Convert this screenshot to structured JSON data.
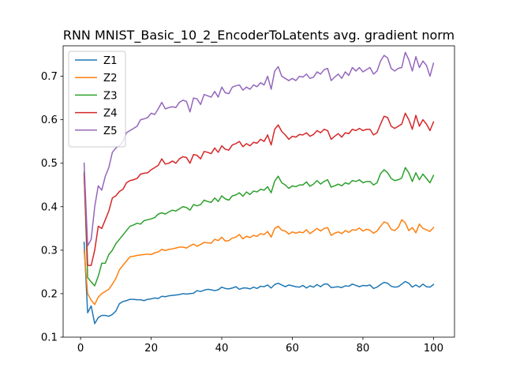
{
  "chart_data": {
    "type": "line",
    "title": "RNN MNIST_Basic_10_2_EncoderToLatents avg. gradient norm",
    "xlabel": "",
    "ylabel": "",
    "xlim": [
      -4.95,
      105.95
    ],
    "ylim": [
      0.1,
      0.77
    ],
    "xticks": [
      0,
      20,
      40,
      60,
      80,
      100
    ],
    "yticks": [
      0.1,
      0.2,
      0.3,
      0.4,
      0.5,
      0.6,
      0.7
    ],
    "ytick_labels": [
      "0.1",
      "0.2",
      "0.3",
      "0.4",
      "0.5",
      "0.6",
      "0.7"
    ],
    "grid": false,
    "legend_position": "top-left",
    "x": [
      1,
      2,
      3,
      4,
      5,
      6,
      7,
      8,
      9,
      10,
      11,
      12,
      13,
      14,
      15,
      16,
      17,
      18,
      19,
      20,
      21,
      22,
      23,
      24,
      25,
      26,
      27,
      28,
      29,
      30,
      31,
      32,
      33,
      34,
      35,
      36,
      37,
      38,
      39,
      40,
      41,
      42,
      43,
      44,
      45,
      46,
      47,
      48,
      49,
      50,
      51,
      52,
      53,
      54,
      55,
      56,
      57,
      58,
      59,
      60,
      61,
      62,
      63,
      64,
      65,
      66,
      67,
      68,
      69,
      70,
      71,
      72,
      73,
      74,
      75,
      76,
      77,
      78,
      79,
      80,
      81,
      82,
      83,
      84,
      85,
      86,
      87,
      88,
      89,
      90,
      91,
      92,
      93,
      94,
      95,
      96,
      97,
      98,
      99,
      100
    ],
    "series": [
      {
        "name": "Z1",
        "color": "#1f77b4",
        "values": [
          0.318,
          0.156,
          0.172,
          0.131,
          0.145,
          0.15,
          0.15,
          0.148,
          0.152,
          0.16,
          0.177,
          0.182,
          0.184,
          0.187,
          0.187,
          0.186,
          0.186,
          0.184,
          0.187,
          0.188,
          0.19,
          0.189,
          0.194,
          0.193,
          0.195,
          0.196,
          0.197,
          0.198,
          0.2,
          0.199,
          0.2,
          0.201,
          0.207,
          0.205,
          0.208,
          0.21,
          0.209,
          0.207,
          0.209,
          0.215,
          0.212,
          0.211,
          0.213,
          0.216,
          0.21,
          0.213,
          0.213,
          0.211,
          0.215,
          0.212,
          0.217,
          0.216,
          0.22,
          0.213,
          0.221,
          0.224,
          0.22,
          0.216,
          0.22,
          0.218,
          0.216,
          0.215,
          0.219,
          0.213,
          0.218,
          0.215,
          0.221,
          0.216,
          0.222,
          0.222,
          0.214,
          0.215,
          0.216,
          0.214,
          0.218,
          0.217,
          0.222,
          0.219,
          0.216,
          0.219,
          0.218,
          0.22,
          0.212,
          0.215,
          0.221,
          0.226,
          0.224,
          0.217,
          0.215,
          0.216,
          0.222,
          0.228,
          0.224,
          0.215,
          0.22,
          0.215,
          0.222,
          0.216,
          0.215,
          0.221
        ]
      },
      {
        "name": "Z2",
        "color": "#ff7f0e",
        "values": [
          0.3,
          0.2,
          0.185,
          0.175,
          0.192,
          0.2,
          0.205,
          0.21,
          0.222,
          0.235,
          0.255,
          0.265,
          0.275,
          0.285,
          0.286,
          0.288,
          0.289,
          0.29,
          0.291,
          0.29,
          0.294,
          0.296,
          0.302,
          0.299,
          0.302,
          0.303,
          0.305,
          0.307,
          0.307,
          0.305,
          0.31,
          0.314,
          0.309,
          0.313,
          0.318,
          0.317,
          0.316,
          0.325,
          0.322,
          0.33,
          0.321,
          0.322,
          0.328,
          0.33,
          0.336,
          0.326,
          0.332,
          0.329,
          0.334,
          0.332,
          0.338,
          0.336,
          0.343,
          0.33,
          0.35,
          0.355,
          0.346,
          0.344,
          0.337,
          0.342,
          0.339,
          0.342,
          0.34,
          0.347,
          0.338,
          0.344,
          0.35,
          0.344,
          0.35,
          0.352,
          0.334,
          0.339,
          0.342,
          0.338,
          0.345,
          0.341,
          0.347,
          0.346,
          0.351,
          0.344,
          0.348,
          0.346,
          0.339,
          0.344,
          0.355,
          0.365,
          0.362,
          0.348,
          0.345,
          0.352,
          0.37,
          0.363,
          0.345,
          0.352,
          0.34,
          0.36,
          0.35,
          0.347,
          0.343,
          0.352
        ]
      },
      {
        "name": "Z3",
        "color": "#2ca02c",
        "values": [
          0.48,
          0.237,
          0.227,
          0.218,
          0.24,
          0.27,
          0.27,
          0.29,
          0.3,
          0.315,
          0.325,
          0.335,
          0.345,
          0.355,
          0.358,
          0.362,
          0.36,
          0.368,
          0.37,
          0.372,
          0.375,
          0.383,
          0.386,
          0.383,
          0.388,
          0.392,
          0.39,
          0.395,
          0.4,
          0.398,
          0.392,
          0.405,
          0.402,
          0.405,
          0.415,
          0.412,
          0.41,
          0.42,
          0.412,
          0.425,
          0.418,
          0.415,
          0.425,
          0.427,
          0.432,
          0.424,
          0.434,
          0.428,
          0.436,
          0.434,
          0.44,
          0.438,
          0.446,
          0.432,
          0.459,
          0.47,
          0.455,
          0.45,
          0.442,
          0.448,
          0.446,
          0.45,
          0.45,
          0.457,
          0.447,
          0.452,
          0.46,
          0.452,
          0.458,
          0.462,
          0.445,
          0.448,
          0.452,
          0.448,
          0.455,
          0.452,
          0.46,
          0.458,
          0.462,
          0.455,
          0.458,
          0.458,
          0.45,
          0.455,
          0.476,
          0.485,
          0.478,
          0.465,
          0.46,
          0.462,
          0.466,
          0.49,
          0.478,
          0.458,
          0.478,
          0.462,
          0.475,
          0.465,
          0.455,
          0.472
        ]
      },
      {
        "name": "Z4",
        "color": "#d62728",
        "values": [
          0.475,
          0.265,
          0.265,
          0.3,
          0.355,
          0.35,
          0.37,
          0.39,
          0.42,
          0.425,
          0.435,
          0.44,
          0.455,
          0.46,
          0.462,
          0.465,
          0.475,
          0.477,
          0.478,
          0.485,
          0.49,
          0.495,
          0.51,
          0.498,
          0.5,
          0.505,
          0.5,
          0.51,
          0.515,
          0.513,
          0.5,
          0.52,
          0.518,
          0.51,
          0.527,
          0.525,
          0.522,
          0.535,
          0.525,
          0.54,
          0.532,
          0.53,
          0.542,
          0.545,
          0.55,
          0.538,
          0.545,
          0.54,
          0.548,
          0.546,
          0.555,
          0.55,
          0.565,
          0.542,
          0.578,
          0.588,
          0.573,
          0.565,
          0.555,
          0.562,
          0.56,
          0.566,
          0.565,
          0.57,
          0.562,
          0.566,
          0.575,
          0.57,
          0.578,
          0.575,
          0.555,
          0.562,
          0.568,
          0.56,
          0.57,
          0.568,
          0.578,
          0.575,
          0.58,
          0.575,
          0.578,
          0.578,
          0.565,
          0.57,
          0.59,
          0.608,
          0.605,
          0.585,
          0.58,
          0.585,
          0.59,
          0.615,
          0.6,
          0.578,
          0.61,
          0.585,
          0.6,
          0.59,
          0.575,
          0.595
        ]
      },
      {
        "name": "Z5",
        "color": "#9467bd",
        "values": [
          0.5,
          0.31,
          0.325,
          0.4,
          0.448,
          0.438,
          0.47,
          0.49,
          0.525,
          0.535,
          0.54,
          0.55,
          0.57,
          0.575,
          0.58,
          0.585,
          0.6,
          0.602,
          0.605,
          0.615,
          0.612,
          0.625,
          0.64,
          0.625,
          0.628,
          0.63,
          0.628,
          0.64,
          0.645,
          0.642,
          0.618,
          0.65,
          0.648,
          0.635,
          0.658,
          0.655,
          0.652,
          0.665,
          0.652,
          0.675,
          0.662,
          0.66,
          0.675,
          0.678,
          0.68,
          0.668,
          0.675,
          0.67,
          0.68,
          0.676,
          0.685,
          0.68,
          0.7,
          0.67,
          0.712,
          0.722,
          0.7,
          0.695,
          0.69,
          0.695,
          0.69,
          0.7,
          0.698,
          0.705,
          0.695,
          0.698,
          0.71,
          0.705,
          0.715,
          0.718,
          0.69,
          0.698,
          0.705,
          0.695,
          0.71,
          0.702,
          0.72,
          0.712,
          0.72,
          0.71,
          0.715,
          0.72,
          0.705,
          0.712,
          0.735,
          0.748,
          0.742,
          0.718,
          0.712,
          0.718,
          0.72,
          0.755,
          0.738,
          0.712,
          0.745,
          0.72,
          0.735,
          0.725,
          0.7,
          0.73
        ]
      }
    ]
  }
}
